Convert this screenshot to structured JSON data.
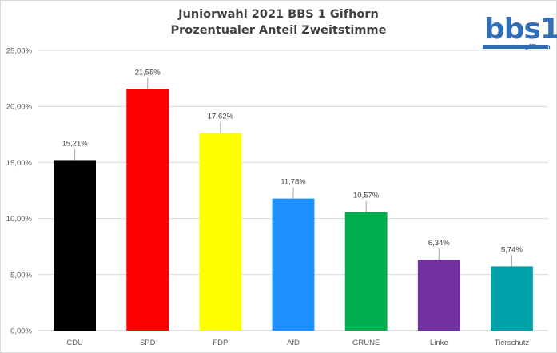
{
  "chart_data": {
    "type": "bar",
    "title": "Juniorwahl 2021 BBS 1 Gifhorn",
    "subtitle": "Prozentualer Anteil Zweitstimme",
    "categories": [
      "CDU",
      "SPD",
      "FDP",
      "AfD",
      "GRÜNE",
      "Linke",
      "Tierschutz"
    ],
    "values": [
      15.21,
      21.55,
      17.62,
      11.78,
      10.57,
      6.34,
      5.74
    ],
    "data_labels": [
      "15,21%",
      "21,55%",
      "17,62%",
      "11,78%",
      "10,57%",
      "6,34%",
      "5,74%"
    ],
    "bar_colors": [
      "#000000",
      "#ff0000",
      "#ffff00",
      "#1e90ff",
      "#00b050",
      "#7030a0",
      "#00a0a8"
    ],
    "y_ticks": [
      0,
      5,
      10,
      15,
      20,
      25
    ],
    "y_tick_labels": [
      "0,00%",
      "5,00%",
      "10,00%",
      "15,00%",
      "20,00%",
      "25,00%"
    ],
    "ylim": [
      0,
      25
    ],
    "grid": true,
    "legend": "none"
  },
  "logo": {
    "word": "bbs1",
    "sub": "gifhorn"
  }
}
